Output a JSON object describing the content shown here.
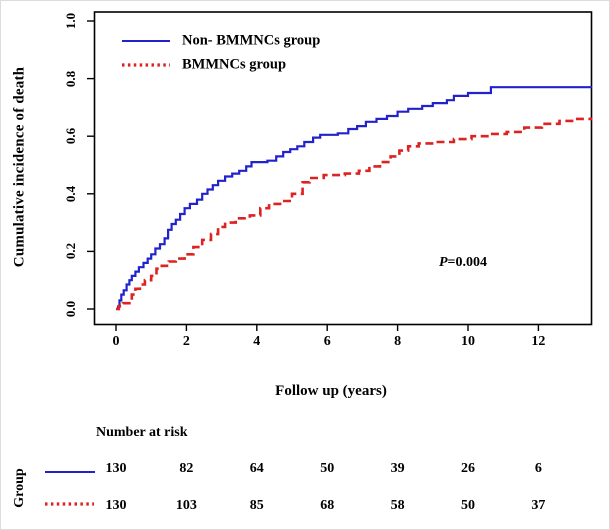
{
  "chart_data": {
    "type": "line",
    "subtype": "step-cumulative-incidence",
    "title": "",
    "xlabel": "Follow up (years)",
    "ylabel": "Cumulative incidence of death",
    "xlim": [
      -0.6,
      13.6
    ],
    "ylim": [
      -0.05,
      1.03
    ],
    "x_ticks": [
      0,
      2,
      4,
      6,
      8,
      10,
      12
    ],
    "y_ticks": [
      "0.0",
      "0.2",
      "0.4",
      "0.6",
      "0.8",
      "1.0"
    ],
    "grid": false,
    "legend_position": "top-left",
    "annotation": {
      "p": "P",
      "value": "=0.004"
    },
    "series": [
      {
        "name": "Non- BMMNCs group",
        "color": "#2222cd",
        "style": "solid",
        "step": true,
        "points": [
          [
            0,
            0
          ],
          [
            0.06,
            0.008
          ],
          [
            0.1,
            0.03
          ],
          [
            0.15,
            0.05
          ],
          [
            0.22,
            0.065
          ],
          [
            0.3,
            0.085
          ],
          [
            0.38,
            0.1
          ],
          [
            0.45,
            0.115
          ],
          [
            0.55,
            0.13
          ],
          [
            0.65,
            0.145
          ],
          [
            0.78,
            0.16
          ],
          [
            0.9,
            0.175
          ],
          [
            1.0,
            0.19
          ],
          [
            1.12,
            0.21
          ],
          [
            1.25,
            0.225
          ],
          [
            1.38,
            0.245
          ],
          [
            1.48,
            0.275
          ],
          [
            1.58,
            0.295
          ],
          [
            1.7,
            0.31
          ],
          [
            1.82,
            0.33
          ],
          [
            1.95,
            0.35
          ],
          [
            2.1,
            0.365
          ],
          [
            2.3,
            0.38
          ],
          [
            2.45,
            0.4
          ],
          [
            2.6,
            0.415
          ],
          [
            2.75,
            0.43
          ],
          [
            2.9,
            0.445
          ],
          [
            3.1,
            0.46
          ],
          [
            3.3,
            0.47
          ],
          [
            3.5,
            0.48
          ],
          [
            3.7,
            0.495
          ],
          [
            3.85,
            0.51
          ],
          [
            4.3,
            0.515
          ],
          [
            4.55,
            0.53
          ],
          [
            4.75,
            0.545
          ],
          [
            4.95,
            0.555
          ],
          [
            5.15,
            0.565
          ],
          [
            5.35,
            0.58
          ],
          [
            5.6,
            0.595
          ],
          [
            5.8,
            0.605
          ],
          [
            6.3,
            0.61
          ],
          [
            6.6,
            0.625
          ],
          [
            6.85,
            0.635
          ],
          [
            7.1,
            0.65
          ],
          [
            7.4,
            0.66
          ],
          [
            7.7,
            0.67
          ],
          [
            8.0,
            0.685
          ],
          [
            8.3,
            0.695
          ],
          [
            8.7,
            0.705
          ],
          [
            9.0,
            0.715
          ],
          [
            9.4,
            0.725
          ],
          [
            9.6,
            0.74
          ],
          [
            10.0,
            0.75
          ],
          [
            10.65,
            0.77
          ],
          [
            13.52,
            0.77
          ]
        ]
      },
      {
        "name": "BMMNCs group",
        "color": "#dd2222",
        "style": "dashed",
        "step": true,
        "points": [
          [
            0,
            0
          ],
          [
            0.08,
            0.01
          ],
          [
            0.2,
            0.02
          ],
          [
            0.45,
            0.05
          ],
          [
            0.55,
            0.07
          ],
          [
            0.68,
            0.085
          ],
          [
            0.82,
            0.1
          ],
          [
            1.0,
            0.115
          ],
          [
            1.15,
            0.14
          ],
          [
            1.3,
            0.15
          ],
          [
            1.5,
            0.165
          ],
          [
            1.7,
            0.175
          ],
          [
            1.95,
            0.19
          ],
          [
            2.2,
            0.215
          ],
          [
            2.45,
            0.24
          ],
          [
            2.7,
            0.26
          ],
          [
            2.9,
            0.285
          ],
          [
            3.1,
            0.3
          ],
          [
            3.4,
            0.315
          ],
          [
            3.8,
            0.325
          ],
          [
            4.1,
            0.35
          ],
          [
            4.35,
            0.365
          ],
          [
            4.7,
            0.375
          ],
          [
            5.0,
            0.4
          ],
          [
            5.3,
            0.44
          ],
          [
            5.5,
            0.455
          ],
          [
            5.9,
            0.465
          ],
          [
            6.5,
            0.47
          ],
          [
            6.9,
            0.48
          ],
          [
            7.2,
            0.495
          ],
          [
            7.5,
            0.51
          ],
          [
            7.8,
            0.53
          ],
          [
            8.05,
            0.55
          ],
          [
            8.3,
            0.565
          ],
          [
            8.6,
            0.575
          ],
          [
            9.1,
            0.58
          ],
          [
            9.6,
            0.59
          ],
          [
            10.1,
            0.6
          ],
          [
            10.6,
            0.608
          ],
          [
            11.1,
            0.615
          ],
          [
            11.6,
            0.63
          ],
          [
            12.1,
            0.643
          ],
          [
            12.6,
            0.653
          ],
          [
            13.0,
            0.66
          ],
          [
            13.5,
            0.665
          ]
        ]
      }
    ]
  },
  "risk_table": {
    "header": "Number at risk",
    "group_axis_label": "Group",
    "time_points": [
      0,
      2,
      4,
      6,
      8,
      10,
      12
    ],
    "rows": [
      {
        "group": "Non- BMMNCs group",
        "swatch": "blue-solid-line",
        "counts": [
          "130",
          "82",
          "64",
          "50",
          "39",
          "26",
          "6"
        ]
      },
      {
        "group": "BMMNCs group",
        "swatch": "red-dotted-line",
        "counts": [
          "130",
          "103",
          "85",
          "68",
          "58",
          "50",
          "37"
        ]
      }
    ]
  },
  "colors": {
    "non_bmmncs": "#2222cd",
    "bmmncs": "#dd2222",
    "axis": "#000000",
    "background": "#ffffff"
  }
}
